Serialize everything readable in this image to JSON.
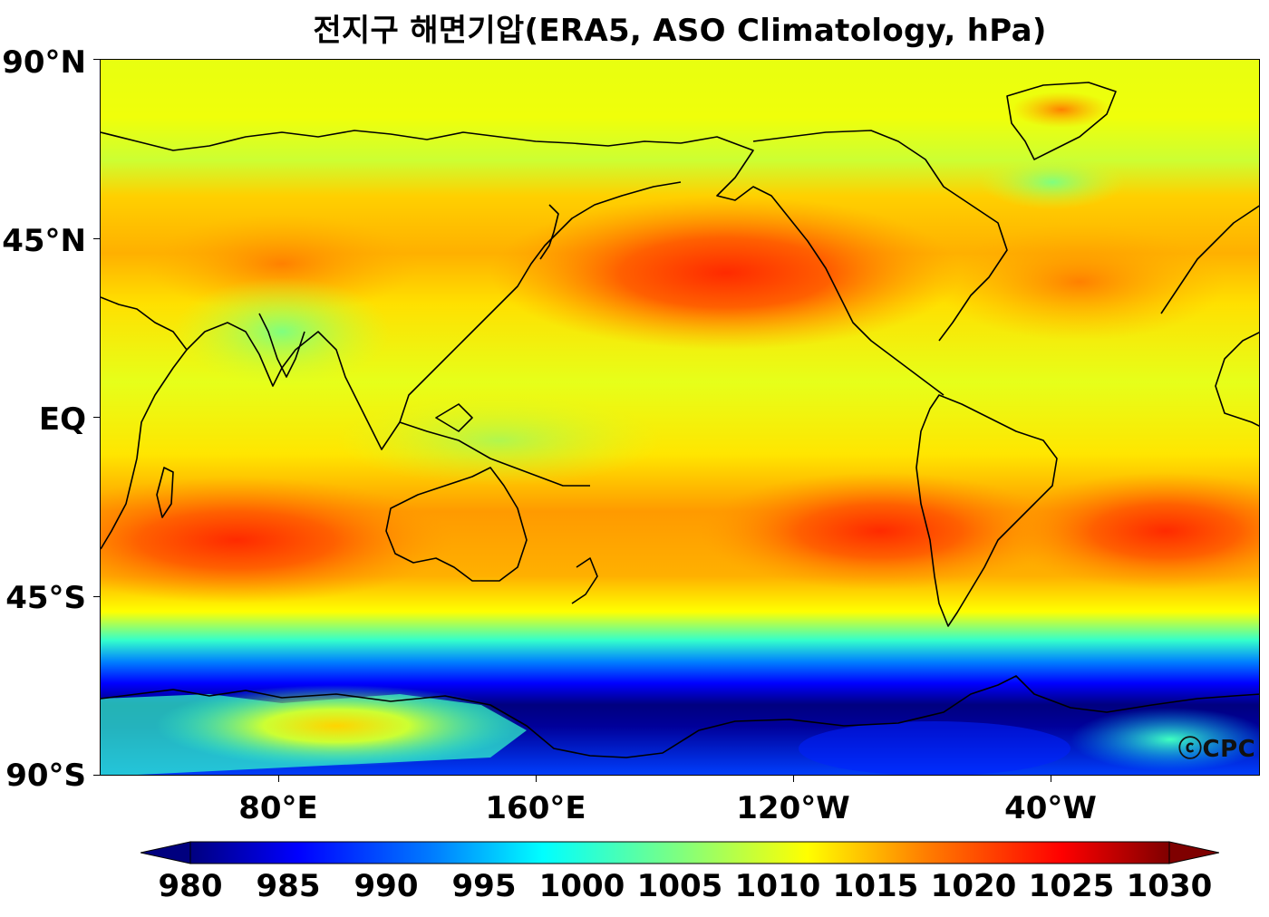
{
  "title": "전지구 해면기압(ERA5, ASO Climatology, hPa)",
  "y_axis_labels": [
    "90°N",
    "45°N",
    "EQ",
    "45°S",
    "90°S"
  ],
  "x_axis_labels": [
    "80°E",
    "160°E",
    "120°W",
    "40°W"
  ],
  "credit": "ⓒCPC",
  "colorbar": {
    "ticks": [
      "980",
      "985",
      "990",
      "995",
      "1000",
      "1005",
      "1010",
      "1015",
      "1020",
      "1025",
      "1030"
    ],
    "range": [
      980,
      1030
    ],
    "extend": "both",
    "colormap": "jet",
    "colors": [
      "#00007f",
      "#0000ff",
      "#007fff",
      "#00ffff",
      "#7fff7f",
      "#ffff00",
      "#ff7f00",
      "#ff0000",
      "#7f0000"
    ]
  },
  "map": {
    "projection": "PlateCarree",
    "lon_range": "25°E to 335°E (25°W)",
    "lat_range": [
      -90,
      90
    ],
    "field": "sea level pressure",
    "coastlines": true,
    "background_color": "#e6ff1a"
  }
}
